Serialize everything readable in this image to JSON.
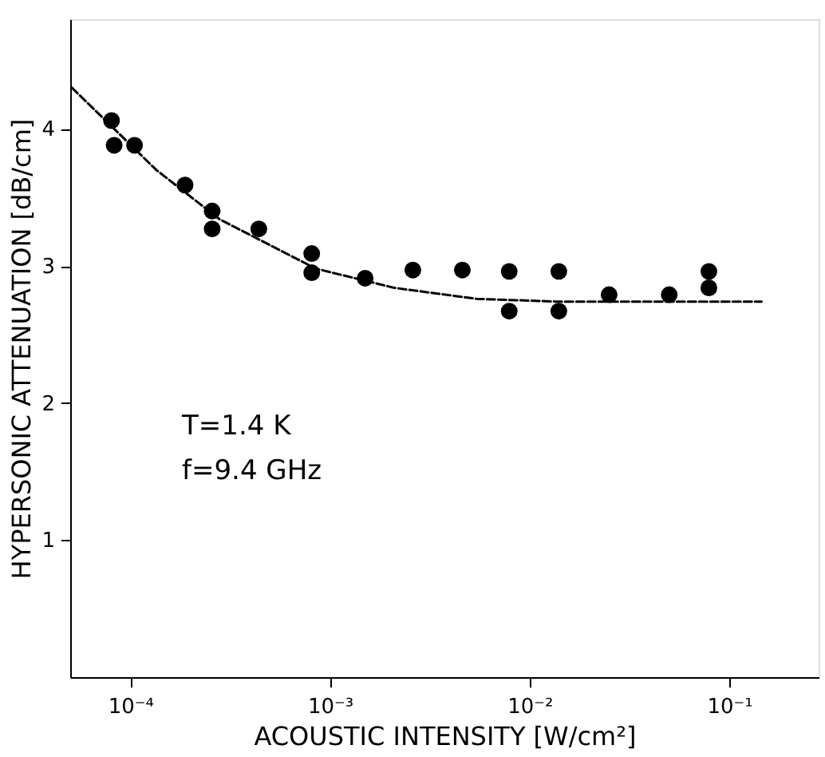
{
  "chart_data": {
    "type": "scatter",
    "xlabel": "ACOUSTIC  INTENSITY [W/cm²]",
    "ylabel": "HYPERSONIC  ATTENUATION  [dB/cm]",
    "log": "x",
    "grid": false,
    "xlim": [
      5e-05,
      0.28
    ],
    "ylim": [
      0,
      4.8
    ],
    "xticks": [
      {
        "value": 0.0001,
        "label": "10⁻⁴"
      },
      {
        "value": 0.001,
        "label": "10⁻³"
      },
      {
        "value": 0.01,
        "label": "10⁻²"
      },
      {
        "value": 0.1,
        "label": "10⁻¹"
      }
    ],
    "yticks": [
      1,
      2,
      3,
      4
    ],
    "annotations": [
      "T=1.4 K",
      "f=9.4 GHz"
    ],
    "series": [
      {
        "marker": "circle",
        "color": "#000000",
        "x": [
          8.05e-05,
          8.3e-05,
          0.000105,
          0.000188,
          0.000257,
          0.000257,
          0.00044,
          0.00081,
          0.00081,
          0.0015,
          0.0026,
          0.0046,
          0.0079,
          0.0079,
          0.014,
          0.014,
          0.025,
          0.05,
          0.079,
          0.079
        ],
        "values": [
          4.06,
          3.88,
          3.88,
          3.59,
          3.4,
          3.27,
          3.27,
          3.09,
          2.95,
          2.91,
          2.97,
          2.97,
          2.96,
          2.67,
          2.96,
          2.67,
          2.79,
          2.79,
          2.96,
          2.84
        ]
      },
      {
        "type": "line",
        "marker": "none",
        "line_style": "dashed",
        "color": "#000000",
        "x": [
          5.1e-05,
          0.000135,
          0.00028,
          0.00085,
          0.0021,
          0.0054,
          0.0135,
          0.145
        ],
        "values": [
          4.3,
          3.7,
          3.34,
          2.98,
          2.84,
          2.76,
          2.74,
          2.74
        ]
      }
    ]
  }
}
